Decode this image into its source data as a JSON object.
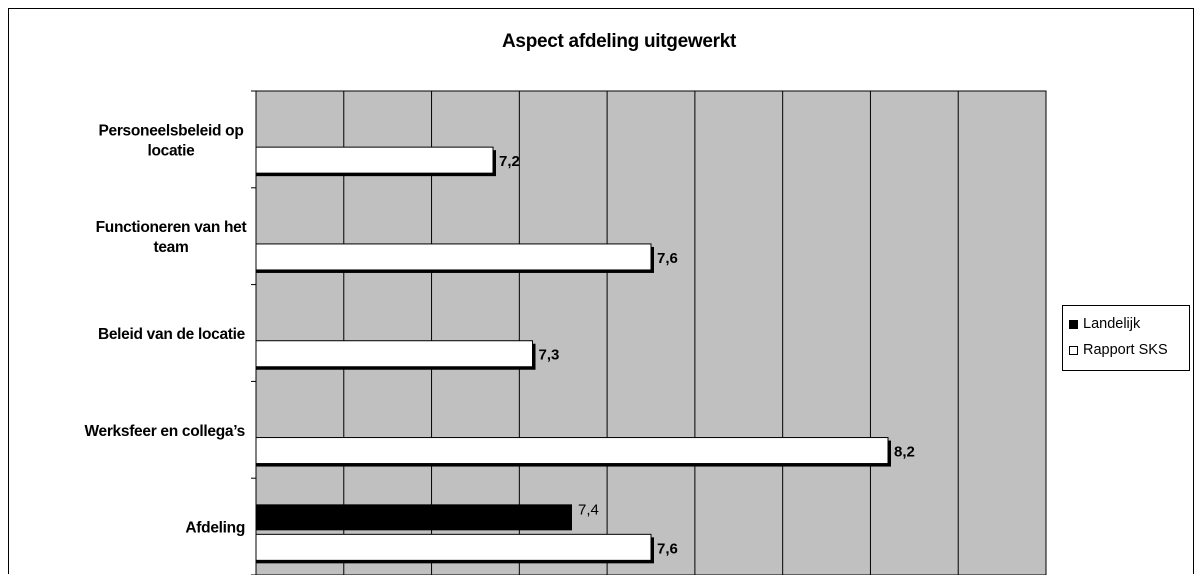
{
  "chart_data": {
    "type": "bar",
    "orientation": "horizontal",
    "title": "Aspect afdeling uitgewerkt",
    "categories": [
      [
        "Personeelsbeleid op",
        "locatie"
      ],
      [
        "Functioneren van het",
        "team"
      ],
      [
        "Beleid van de locatie"
      ],
      [
        "Werksfeer en collega’s"
      ],
      [
        "Afdeling"
      ]
    ],
    "series": [
      {
        "name": "Landelijk",
        "color": "#000000",
        "values": [
          null,
          null,
          null,
          null,
          7.4
        ],
        "labels": [
          null,
          null,
          null,
          null,
          "7,4"
        ]
      },
      {
        "name": "Rapport SKS",
        "color": "#ffffff",
        "values": [
          7.2,
          7.6,
          7.3,
          8.2,
          7.6
        ],
        "labels": [
          "7,2",
          "7,6",
          "7,3",
          "8,2",
          "7,6"
        ]
      }
    ],
    "xlim": [
      6.6,
      8.6
    ],
    "grid": true,
    "plot_background": "#c0c0c0",
    "legend_position": "right"
  }
}
